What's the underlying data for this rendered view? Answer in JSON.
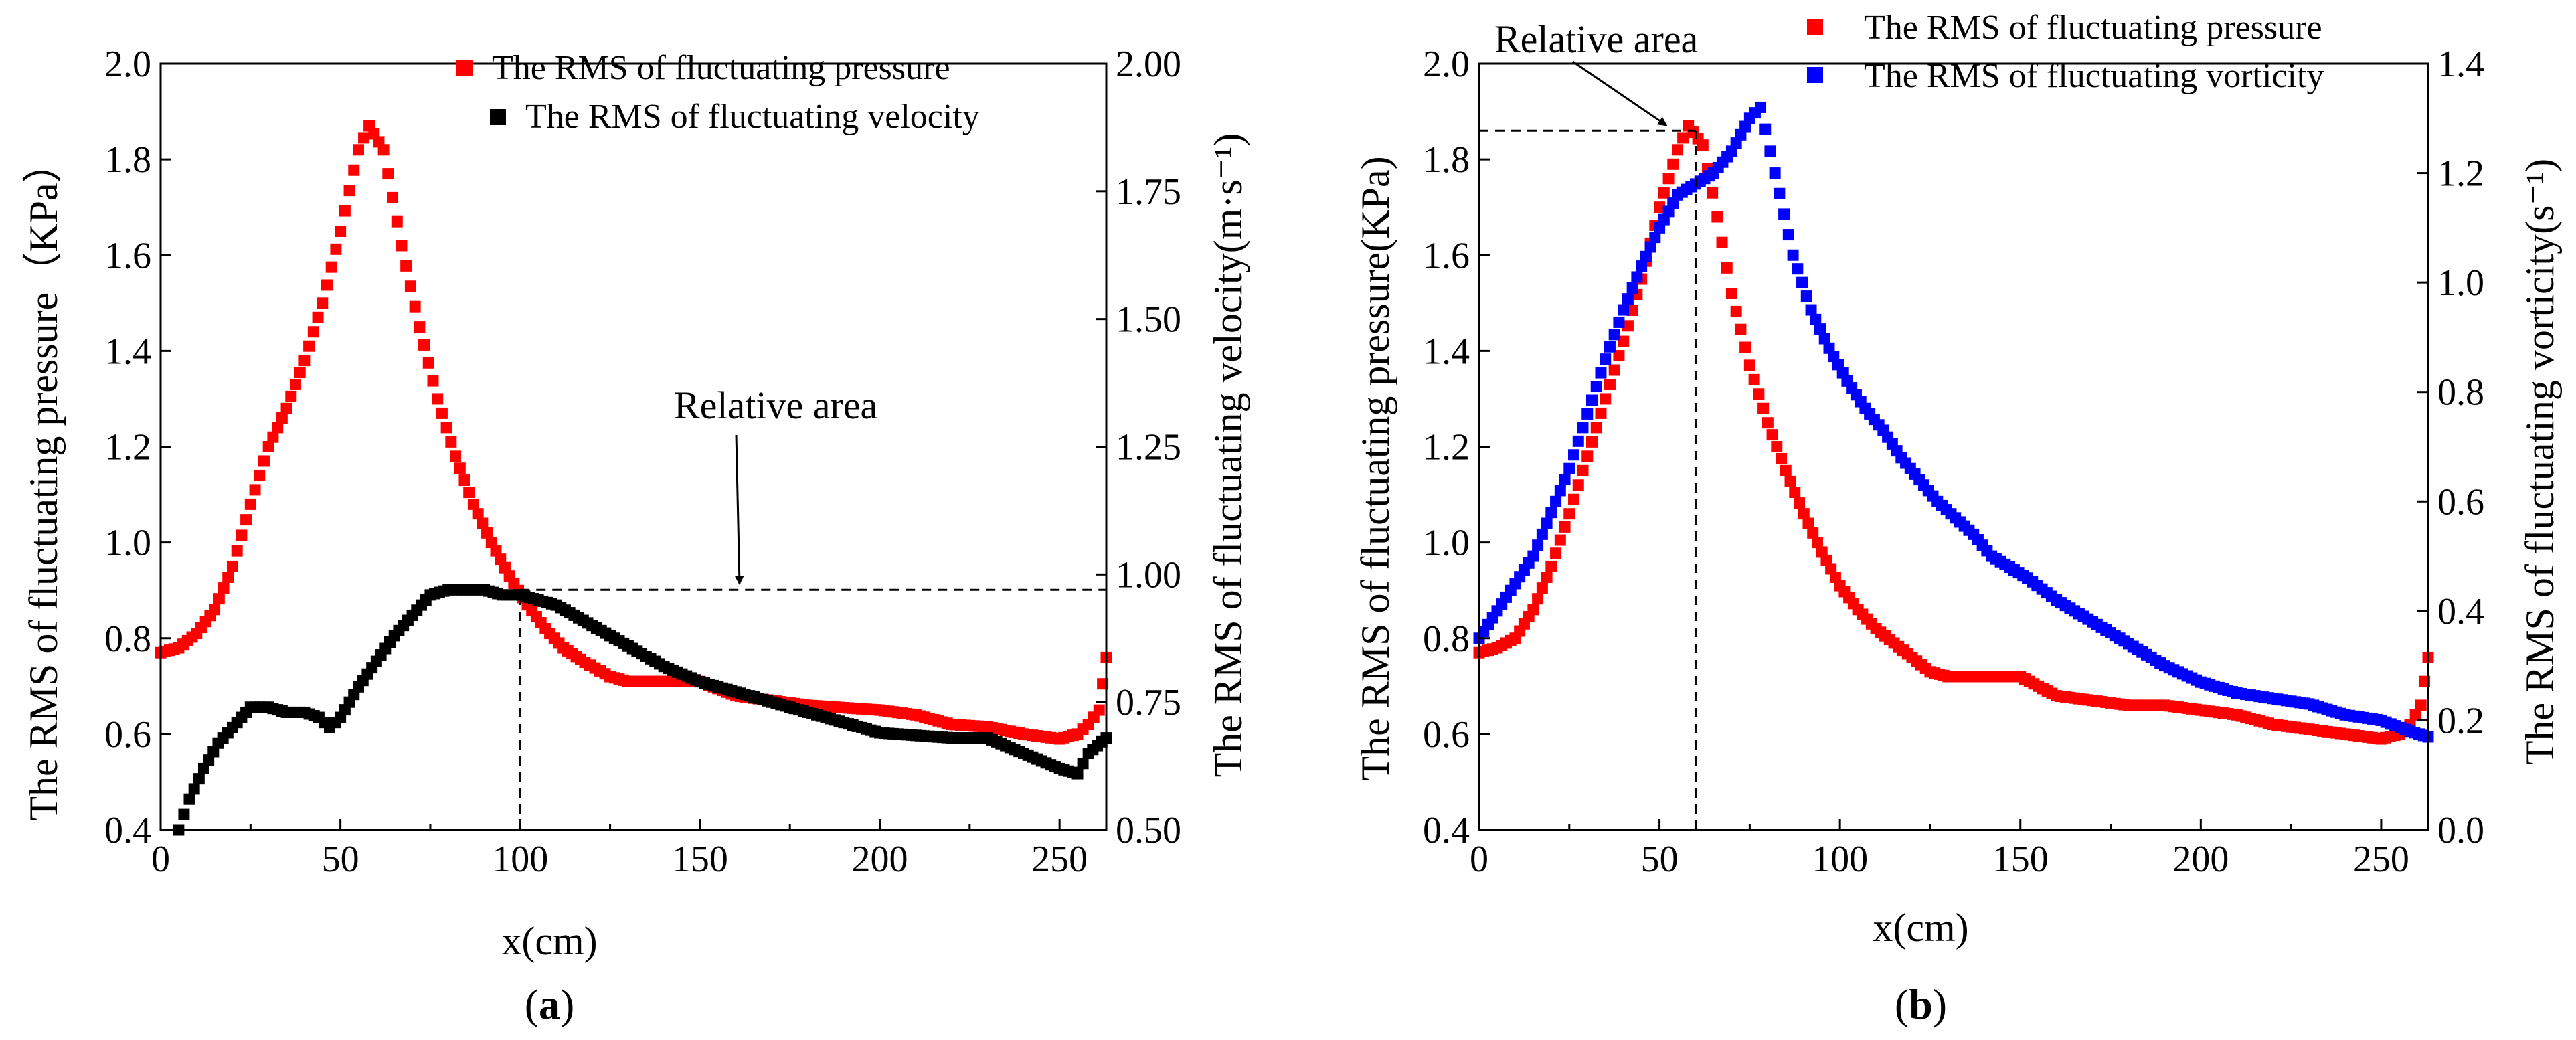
{
  "chart_data": [
    {
      "id": "a",
      "type": "scatter",
      "caption": {
        "open": "(",
        "letter": "a",
        "close": ")"
      },
      "xlabel": "x(cm)",
      "ylabel_left": "The RMS of fluctuating pressure（KPa）",
      "ylabel_right": "The RMS of fluctuating velocity(m·s⁻¹)",
      "xlim": [
        0,
        263
      ],
      "ylim_left": [
        0.4,
        2.0
      ],
      "ylim_right": [
        0.5,
        2.0
      ],
      "xticks": [
        0,
        50,
        100,
        150,
        200,
        250
      ],
      "xtick_labels": [
        "0",
        "50",
        "100",
        "150",
        "200",
        "250"
      ],
      "yticks_left": [
        0.4,
        0.6,
        0.8,
        1.0,
        1.2,
        1.4,
        1.6,
        1.8,
        2.0
      ],
      "ytick_labels_left": [
        "0.4",
        "0.6",
        "0.8",
        "1.0",
        "1.2",
        "1.4",
        "1.6",
        "1.8",
        "2.0"
      ],
      "yticks_right": [
        0.5,
        0.75,
        1.0,
        1.25,
        1.5,
        1.75,
        2.0
      ],
      "ytick_labels_right": [
        "0.50",
        "0.75",
        "1.00",
        "1.25",
        "1.50",
        "1.75",
        "2.00"
      ],
      "annotation": {
        "text": "Relative area",
        "x_line": 100,
        "y_line_left": 0.9,
        "y_line_right": 0.97,
        "arrow_to_x": 161,
        "arrow_to_y_left": 0.9
      },
      "series": [
        {
          "name": "The RMS of fluctuating pressure",
          "color": "#ff0000",
          "axis": "left",
          "points": [
            [
              0,
              0.77
            ],
            [
              5,
              0.78
            ],
            [
              10,
              0.81
            ],
            [
              15,
              0.86
            ],
            [
              20,
              0.95
            ],
            [
              25,
              1.08
            ],
            [
              30,
              1.2
            ],
            [
              35,
              1.28
            ],
            [
              40,
              1.38
            ],
            [
              45,
              1.5
            ],
            [
              50,
              1.65
            ],
            [
              55,
              1.82
            ],
            [
              58,
              1.87
            ],
            [
              62,
              1.82
            ],
            [
              67,
              1.62
            ],
            [
              72,
              1.45
            ],
            [
              77,
              1.3
            ],
            [
              82,
              1.18
            ],
            [
              87,
              1.08
            ],
            [
              92,
              1.0
            ],
            [
              97,
              0.93
            ],
            [
              102,
              0.87
            ],
            [
              107,
              0.82
            ],
            [
              112,
              0.78
            ],
            [
              118,
              0.75
            ],
            [
              125,
              0.72
            ],
            [
              130,
              0.71
            ],
            [
              140,
              0.71
            ],
            [
              150,
              0.71
            ],
            [
              160,
              0.68
            ],
            [
              170,
              0.67
            ],
            [
              180,
              0.66
            ],
            [
              190,
              0.655
            ],
            [
              200,
              0.65
            ],
            [
              210,
              0.64
            ],
            [
              220,
              0.62
            ],
            [
              230,
              0.615
            ],
            [
              240,
              0.6
            ],
            [
              250,
              0.59
            ],
            [
              255,
              0.6
            ],
            [
              258,
              0.62
            ],
            [
              261,
              0.65
            ],
            [
              263,
              0.76
            ]
          ]
        },
        {
          "name": "The RMS of fluctuating velocity",
          "color": "#000000",
          "axis": "right",
          "points": [
            [
              5,
              0.5
            ],
            [
              8,
              0.56
            ],
            [
              12,
              0.62
            ],
            [
              16,
              0.67
            ],
            [
              20,
              0.7
            ],
            [
              25,
              0.74
            ],
            [
              30,
              0.74
            ],
            [
              35,
              0.73
            ],
            [
              40,
              0.73
            ],
            [
              44,
              0.72
            ],
            [
              47,
              0.7
            ],
            [
              50,
              0.72
            ],
            [
              55,
              0.78
            ],
            [
              60,
              0.83
            ],
            [
              65,
              0.88
            ],
            [
              70,
              0.92
            ],
            [
              75,
              0.96
            ],
            [
              80,
              0.97
            ],
            [
              85,
              0.97
            ],
            [
              90,
              0.97
            ],
            [
              95,
              0.96
            ],
            [
              100,
              0.96
            ],
            [
              105,
              0.95
            ],
            [
              110,
              0.94
            ],
            [
              115,
              0.92
            ],
            [
              120,
              0.9
            ],
            [
              125,
              0.88
            ],
            [
              130,
              0.86
            ],
            [
              140,
              0.82
            ],
            [
              150,
              0.79
            ],
            [
              160,
              0.77
            ],
            [
              170,
              0.75
            ],
            [
              180,
              0.73
            ],
            [
              190,
              0.71
            ],
            [
              200,
              0.69
            ],
            [
              210,
              0.685
            ],
            [
              220,
              0.68
            ],
            [
              230,
              0.68
            ],
            [
              240,
              0.65
            ],
            [
              250,
              0.62
            ],
            [
              255,
              0.61
            ],
            [
              258,
              0.65
            ],
            [
              263,
              0.68
            ]
          ]
        }
      ]
    },
    {
      "id": "b",
      "type": "scatter",
      "caption": {
        "open": "(",
        "letter": "b",
        "close": ")"
      },
      "xlabel": "x(cm)",
      "ylabel_left": "The RMS of fluctuating pressure(KPa)",
      "ylabel_right": "The RMS of fluctuating vorticity(s⁻¹)",
      "xlim": [
        0,
        263
      ],
      "ylim_left": [
        0.4,
        2.0
      ],
      "ylim_right": [
        0.0,
        1.4
      ],
      "xticks": [
        0,
        50,
        100,
        150,
        200,
        250
      ],
      "xtick_labels": [
        "0",
        "50",
        "100",
        "150",
        "200",
        "250"
      ],
      "yticks_left": [
        0.4,
        0.6,
        0.8,
        1.0,
        1.2,
        1.4,
        1.6,
        1.8,
        2.0
      ],
      "ytick_labels_left": [
        "0.4",
        "0.6",
        "0.8",
        "1.0",
        "1.2",
        "1.4",
        "1.6",
        "1.8",
        "2.0"
      ],
      "yticks_right": [
        0.0,
        0.2,
        0.4,
        0.6,
        0.8,
        1.0,
        1.2,
        1.4
      ],
      "ytick_labels_right": [
        "0.0",
        "0.2",
        "0.4",
        "0.6",
        "0.8",
        "1.0",
        "1.2",
        "1.4"
      ],
      "annotation": {
        "text": "Relative area",
        "x_line": 60,
        "y_line_left": 1.86,
        "arrow_to_x": 53,
        "arrow_to_y_left": 1.86
      },
      "series": [
        {
          "name": "The RMS of fluctuating pressure",
          "color": "#ff0000",
          "axis": "left",
          "points": [
            [
              0,
              0.77
            ],
            [
              5,
              0.78
            ],
            [
              10,
              0.8
            ],
            [
              15,
              0.86
            ],
            [
              20,
              0.95
            ],
            [
              25,
              1.06
            ],
            [
              30,
              1.18
            ],
            [
              35,
              1.3
            ],
            [
              40,
              1.42
            ],
            [
              45,
              1.55
            ],
            [
              50,
              1.7
            ],
            [
              55,
              1.82
            ],
            [
              58,
              1.87
            ],
            [
              62,
              1.83
            ],
            [
              66,
              1.68
            ],
            [
              70,
              1.52
            ],
            [
              75,
              1.37
            ],
            [
              80,
              1.25
            ],
            [
              85,
              1.15
            ],
            [
              90,
              1.06
            ],
            [
              95,
              0.98
            ],
            [
              100,
              0.91
            ],
            [
              105,
              0.86
            ],
            [
              110,
              0.82
            ],
            [
              115,
              0.79
            ],
            [
              120,
              0.76
            ],
            [
              125,
              0.73
            ],
            [
              130,
              0.72
            ],
            [
              140,
              0.72
            ],
            [
              150,
              0.72
            ],
            [
              160,
              0.68
            ],
            [
              170,
              0.67
            ],
            [
              180,
              0.66
            ],
            [
              190,
              0.66
            ],
            [
              200,
              0.65
            ],
            [
              210,
              0.64
            ],
            [
              220,
              0.62
            ],
            [
              230,
              0.61
            ],
            [
              240,
              0.6
            ],
            [
              250,
              0.59
            ],
            [
              255,
              0.6
            ],
            [
              258,
              0.62
            ],
            [
              261,
              0.66
            ],
            [
              263,
              0.76
            ]
          ]
        },
        {
          "name": "The RMS of fluctuating vorticity",
          "color": "#0000ff",
          "axis": "right",
          "points": [
            [
              0,
              0.35
            ],
            [
              5,
              0.4
            ],
            [
              10,
              0.45
            ],
            [
              15,
              0.5
            ],
            [
              20,
              0.58
            ],
            [
              25,
              0.66
            ],
            [
              30,
              0.76
            ],
            [
              35,
              0.86
            ],
            [
              40,
              0.95
            ],
            [
              45,
              1.03
            ],
            [
              50,
              1.1
            ],
            [
              55,
              1.16
            ],
            [
              60,
              1.18
            ],
            [
              65,
              1.2
            ],
            [
              70,
              1.24
            ],
            [
              75,
              1.3
            ],
            [
              78,
              1.32
            ],
            [
              82,
              1.2
            ],
            [
              87,
              1.05
            ],
            [
              92,
              0.95
            ],
            [
              97,
              0.88
            ],
            [
              102,
              0.82
            ],
            [
              107,
              0.77
            ],
            [
              112,
              0.73
            ],
            [
              117,
              0.68
            ],
            [
              122,
              0.64
            ],
            [
              127,
              0.6
            ],
            [
              132,
              0.57
            ],
            [
              137,
              0.54
            ],
            [
              142,
              0.5
            ],
            [
              147,
              0.48
            ],
            [
              152,
              0.46
            ],
            [
              160,
              0.42
            ],
            [
              170,
              0.38
            ],
            [
              180,
              0.34
            ],
            [
              190,
              0.3
            ],
            [
              200,
              0.27
            ],
            [
              210,
              0.25
            ],
            [
              220,
              0.24
            ],
            [
              230,
              0.23
            ],
            [
              240,
              0.21
            ],
            [
              250,
              0.2
            ],
            [
              258,
              0.18
            ],
            [
              263,
              0.17
            ]
          ]
        }
      ]
    }
  ]
}
